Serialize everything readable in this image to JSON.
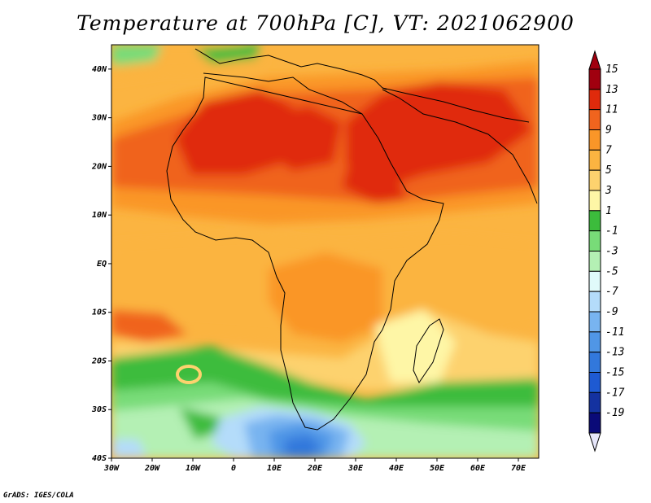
{
  "title": "Temperature at 700hPa [C], VT: 2021062900",
  "credit": "GrADS: IGES/COLA",
  "map": {
    "projection": "latlon",
    "lon_range": [
      -30,
      75
    ],
    "lat_range": [
      -40,
      45
    ],
    "lon_labels": [
      {
        "lon": -30,
        "text": "30W"
      },
      {
        "lon": -20,
        "text": "20W"
      },
      {
        "lon": -10,
        "text": "10W"
      },
      {
        "lon": 0,
        "text": "0"
      },
      {
        "lon": 10,
        "text": "10E"
      },
      {
        "lon": 20,
        "text": "20E"
      },
      {
        "lon": 30,
        "text": "30E"
      },
      {
        "lon": 40,
        "text": "40E"
      },
      {
        "lon": 50,
        "text": "50E"
      },
      {
        "lon": 60,
        "text": "60E"
      },
      {
        "lon": 70,
        "text": "70E"
      }
    ],
    "lat_labels": [
      {
        "lat": 40,
        "text": "40N"
      },
      {
        "lat": 30,
        "text": "30N"
      },
      {
        "lat": 20,
        "text": "20N"
      },
      {
        "lat": 10,
        "text": "10N"
      },
      {
        "lat": 0,
        "text": "EQ"
      },
      {
        "lat": -10,
        "text": "10S"
      },
      {
        "lat": -20,
        "text": "20S"
      },
      {
        "lat": -30,
        "text": "30S"
      },
      {
        "lat": -40,
        "text": "40S"
      }
    ]
  },
  "colorbar": {
    "levels": [
      {
        "label": "15",
        "color": "#a0000f"
      },
      {
        "label": "13",
        "color": "#e02a0c"
      },
      {
        "label": "11",
        "color": "#f0641e"
      },
      {
        "label": "9",
        "color": "#fa9628"
      },
      {
        "label": "7",
        "color": "#fbb441"
      },
      {
        "label": "5",
        "color": "#fdd26e"
      },
      {
        "label": "3",
        "color": "#fef6a6"
      },
      {
        "label": "1",
        "color": "#3cbc3c"
      },
      {
        "label": "-1",
        "color": "#78dc78"
      },
      {
        "label": "-3",
        "color": "#b4f0b4"
      },
      {
        "label": "-5",
        "color": "#e0fafa"
      },
      {
        "label": "-7",
        "color": "#b4dcfa"
      },
      {
        "label": "-9",
        "color": "#78b4f0"
      },
      {
        "label": "-11",
        "color": "#5096e6"
      },
      {
        "label": "-13",
        "color": "#3278dc"
      },
      {
        "label": "-15",
        "color": "#1e5ad2"
      },
      {
        "label": "-17",
        "color": "#1432a0"
      },
      {
        "label": "-19",
        "color": "#0a0a78"
      }
    ],
    "under_color": "#e6e6fa"
  }
}
